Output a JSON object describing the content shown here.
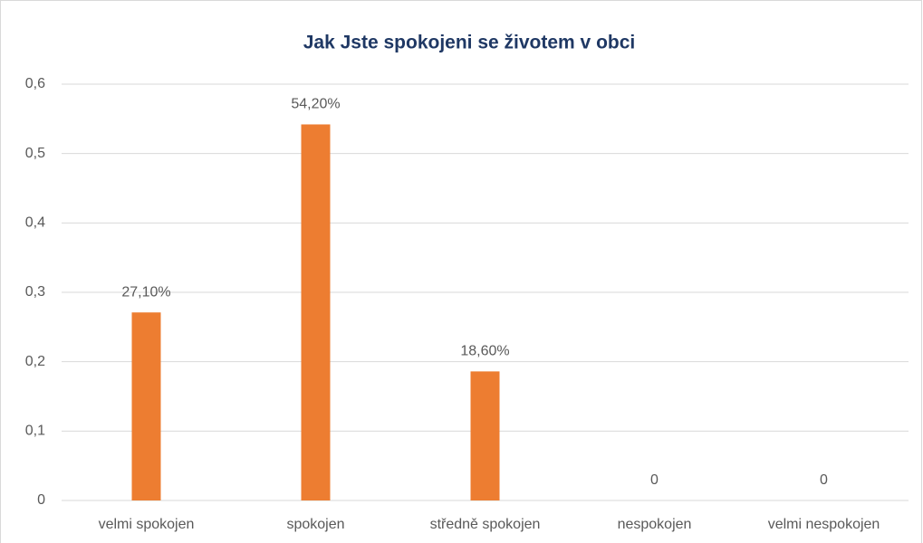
{
  "chart_data": {
    "type": "bar",
    "title": "Jak Jste  spokojeni se životem v obci",
    "categories": [
      "velmi spokojen",
      "spokojen",
      "středně spokojen",
      "nespokojen",
      "velmi nespokojen"
    ],
    "values": [
      0.271,
      0.542,
      0.186,
      0,
      0
    ],
    "value_labels": [
      "27,10%",
      "54,20%",
      "18,60%",
      "0",
      "0"
    ],
    "color": "#ed7d31",
    "ylim": [
      0,
      0.6
    ],
    "yticks": [
      0,
      {
        "value": 0.1,
        "label": "0,1"
      },
      {
        "value": 0.2,
        "label": "0,2"
      },
      {
        "value": 0.3,
        "label": "0,3"
      },
      {
        "value": 0.4,
        "label": "0,4"
      },
      {
        "value": 0.5,
        "label": "0,5"
      },
      {
        "value": 0.6,
        "label": "0,6"
      }
    ],
    "grid": true
  }
}
